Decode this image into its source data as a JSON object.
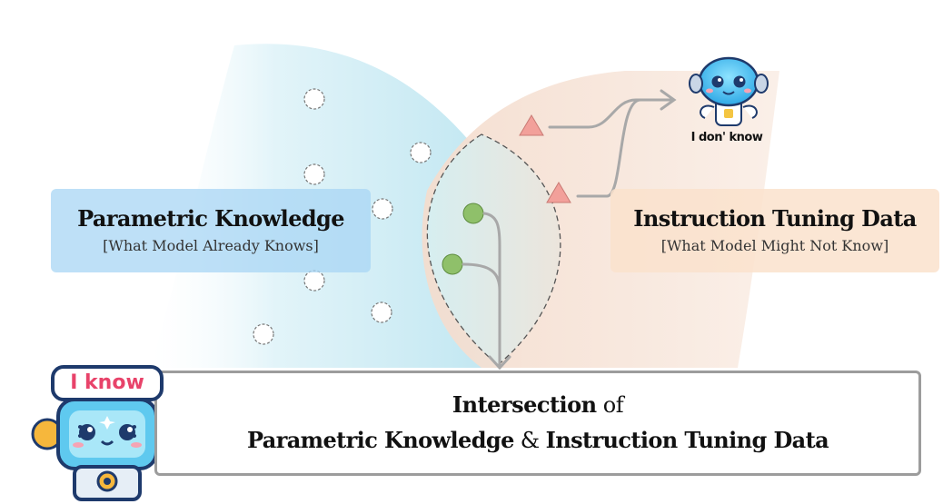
{
  "parametric_box": {
    "title": "Parametric Knowledge",
    "subtitle": "[What Model Already Knows]"
  },
  "instruction_box": {
    "title": "Instruction Tuning Data",
    "subtitle": "[What Model Might Not Know]"
  },
  "intersection_box": {
    "line1_bold": "Intersection",
    "line1_rest": " of",
    "line2_part1": "Parametric Knowledge",
    "line2_amp": " & ",
    "line2_part2": "Instruction Tuning Data"
  },
  "robot_know": {
    "speech": "I know",
    "icon": "happy-robot-icon"
  },
  "robot_dont_know": {
    "caption": "I don' know",
    "icon": "confused-robot-icon"
  },
  "markers": {
    "known_point_icon": "white-circle-icon",
    "unknown_point_icon": "red-triangle-icon",
    "overlap_point_icon": "green-circle-icon"
  },
  "colors": {
    "parametric_region": "#cfeef6",
    "instruction_region": "#f6e2d4",
    "overlap_point": "#8fc06a",
    "unknown_point": "#f2a09a",
    "arrow": "#a8a8a8",
    "robot_outline": "#1e3a6c",
    "know_text": "#e8436a"
  }
}
